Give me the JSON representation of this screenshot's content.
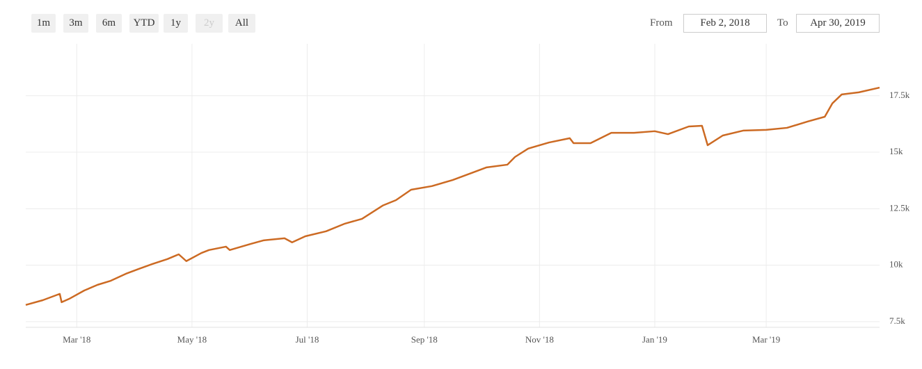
{
  "controls": {
    "range_buttons": [
      "1m",
      "3m",
      "6m",
      "YTD",
      "1y",
      "2y",
      "All"
    ],
    "disabled_button": "2y",
    "from_label": "From",
    "from_value": "Feb 2, 2018",
    "to_label": "To",
    "to_value": "Apr 30, 2019"
  },
  "chart_data": {
    "type": "line",
    "color": "#cc6a23",
    "grid": true,
    "x": [
      "2018-02-02",
      "2018-02-11",
      "2018-02-20",
      "2018-02-21",
      "2018-02-25",
      "2018-03-05",
      "2018-03-12",
      "2018-03-19",
      "2018-03-27",
      "2018-04-03",
      "2018-04-10",
      "2018-04-18",
      "2018-04-24",
      "2018-04-28",
      "2018-05-06",
      "2018-05-10",
      "2018-05-19",
      "2018-05-21",
      "2018-06-01",
      "2018-06-08",
      "2018-06-19",
      "2018-06-23",
      "2018-06-30",
      "2018-07-11",
      "2018-07-21",
      "2018-07-30",
      "2018-08-10",
      "2018-08-17",
      "2018-08-25",
      "2018-09-05",
      "2018-09-16",
      "2018-09-27",
      "2018-10-04",
      "2018-10-15",
      "2018-10-19",
      "2018-10-26",
      "2018-11-06",
      "2018-11-17",
      "2018-11-19",
      "2018-11-28",
      "2018-12-09",
      "2018-12-21",
      "2019-01-01",
      "2019-01-08",
      "2019-01-19",
      "2019-01-26",
      "2019-01-29",
      "2019-02-06",
      "2019-02-17",
      "2019-03-01",
      "2019-03-12",
      "2019-03-23",
      "2019-04-01",
      "2019-04-05",
      "2019-04-10",
      "2019-04-19",
      "2019-04-30"
    ],
    "values": [
      8240,
      8450,
      8730,
      8360,
      8510,
      8880,
      9130,
      9310,
      9620,
      9840,
      10050,
      10270,
      10480,
      10180,
      10540,
      10670,
      10820,
      10670,
      10940,
      11100,
      11190,
      11010,
      11280,
      11500,
      11840,
      12050,
      12640,
      12880,
      13340,
      13500,
      13770,
      14110,
      14330,
      14450,
      14790,
      15160,
      15430,
      15620,
      15400,
      15400,
      15860,
      15860,
      15930,
      15800,
      16140,
      16170,
      15310,
      15740,
      15960,
      15990,
      16080,
      16360,
      16570,
      17160,
      17560,
      17650,
      17860
    ],
    "xlim": [
      "2018-02-02",
      "2019-04-30"
    ],
    "xticks": [
      {
        "value": "2018-03-01",
        "label": "Mar '18"
      },
      {
        "value": "2018-05-01",
        "label": "May '18"
      },
      {
        "value": "2018-07-01",
        "label": "Jul '18"
      },
      {
        "value": "2018-09-01",
        "label": "Sep '18"
      },
      {
        "value": "2018-11-01",
        "label": "Nov '18"
      },
      {
        "value": "2019-01-01",
        "label": "Jan '19"
      },
      {
        "value": "2019-03-01",
        "label": "Mar '19"
      }
    ],
    "ylim": [
      7250,
      19800
    ],
    "yticks": [
      {
        "value": 7500,
        "label": "7.5k"
      },
      {
        "value": 10000,
        "label": "10k"
      },
      {
        "value": 12500,
        "label": "12.5k"
      },
      {
        "value": 15000,
        "label": "15k"
      },
      {
        "value": 17500,
        "label": "17.5k"
      }
    ]
  }
}
